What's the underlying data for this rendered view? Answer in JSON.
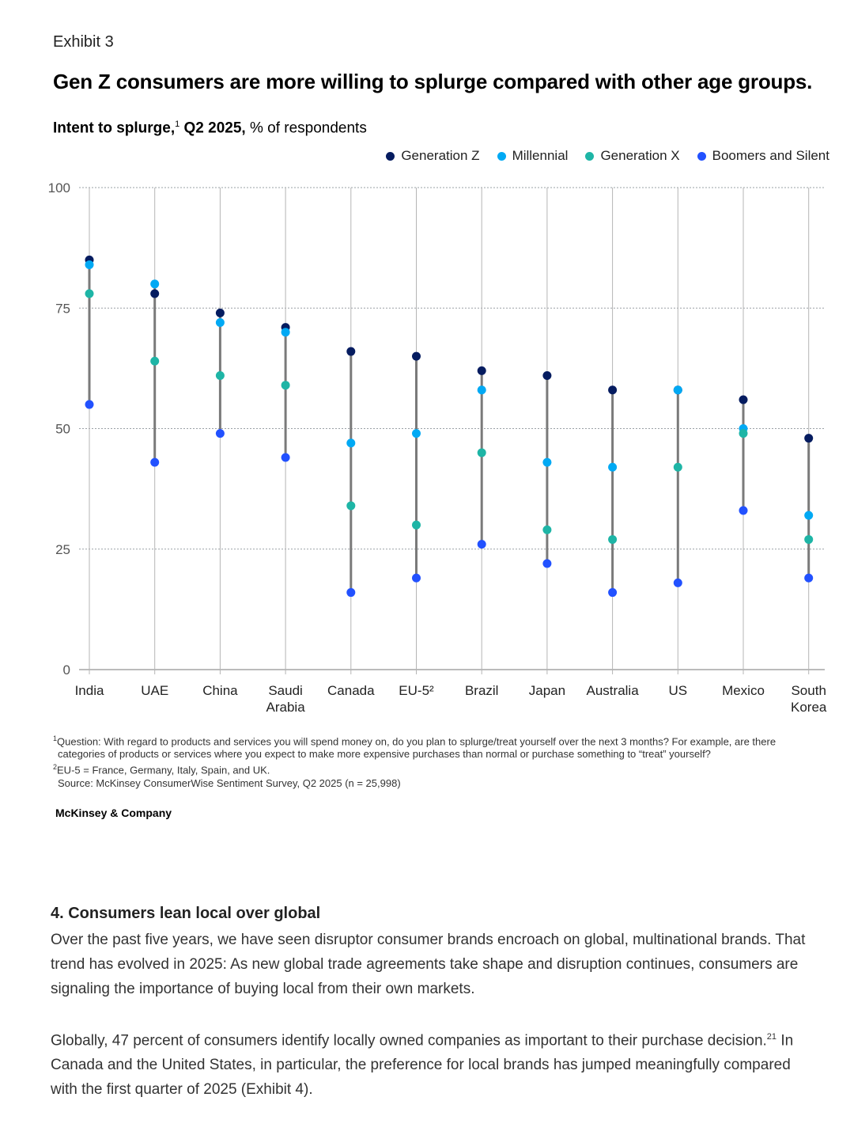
{
  "exhibit_label": "Exhibit 3",
  "headline": "Gen Z consumers are more willing to splurge compared with other age groups.",
  "subtitle": {
    "bold": "Intent to splurge,",
    "sup": "1",
    "bold2": " Q2 2025,",
    "rest": " % of respondents"
  },
  "chart_data": {
    "type": "dot-range",
    "ylim": [
      0,
      100
    ],
    "yticks": [
      "0",
      "25",
      "50",
      "75",
      "100"
    ],
    "ytick_values": [
      0,
      25,
      50,
      75,
      100
    ],
    "grid": true,
    "legend_position": "top-right",
    "categories": [
      [
        "India"
      ],
      [
        "UAE"
      ],
      [
        "China"
      ],
      [
        "Saudi",
        "Arabia"
      ],
      [
        "Canada"
      ],
      [
        "EU-5²"
      ],
      [
        "Brazil"
      ],
      [
        "Japan"
      ],
      [
        "Australia"
      ],
      [
        "US"
      ],
      [
        "Mexico"
      ],
      [
        "South",
        "Korea"
      ]
    ],
    "series": [
      {
        "name": "Generation Z",
        "color": "#051c60",
        "values": [
          85,
          78,
          74,
          71,
          66,
          65,
          62,
          61,
          58,
          58,
          56,
          48
        ]
      },
      {
        "name": "Millennial",
        "color": "#00a9f4",
        "values": [
          84,
          80,
          72,
          70,
          47,
          49,
          58,
          43,
          42,
          58,
          50,
          32
        ]
      },
      {
        "name": "Generation X",
        "color": "#1eb5a6",
        "values": [
          78,
          64,
          61,
          59,
          34,
          30,
          45,
          29,
          27,
          42,
          49,
          27
        ]
      },
      {
        "name": "Boomers and Silent",
        "color": "#2251ff",
        "values": [
          55,
          43,
          49,
          44,
          16,
          19,
          26,
          22,
          16,
          18,
          33,
          19
        ]
      }
    ]
  },
  "footnotes": {
    "q_sup": "1",
    "question_line1": "Question: With regard to products and services you will spend money on, do you plan to splurge/treat yourself over the next 3 months? For example, are there",
    "question_line2": "categories of products or services where you expect to make more expensive purchases than normal or purchase something to “treat” yourself?",
    "eu_sup": "2",
    "eu_note": "EU-5 = France, Germany, Italy, Spain, and UK.",
    "source": "Source: McKinsey ConsumerWise Sentiment Survey, Q2 2025 (n = 25,998)"
  },
  "brand": "McKinsey & Company",
  "section": {
    "heading": "4. Consumers lean local over global",
    "para1": "Over the past five years, we have seen disruptor consumer brands encroach on global, multinational brands. That trend has evolved in 2025: As new global trade agreements take shape and disruption continues, consumers are signaling the importance of buying local from their own markets.",
    "para2_a": "Globally, 47 percent of consumers identify locally owned companies as important to their purchase decision.",
    "para2_sup": "21",
    "para2_b": " In Canada and the United States, in particular, the preference for local brands has jumped meaningfully compared with the first quarter of 2025 (Exhibit 4)."
  }
}
